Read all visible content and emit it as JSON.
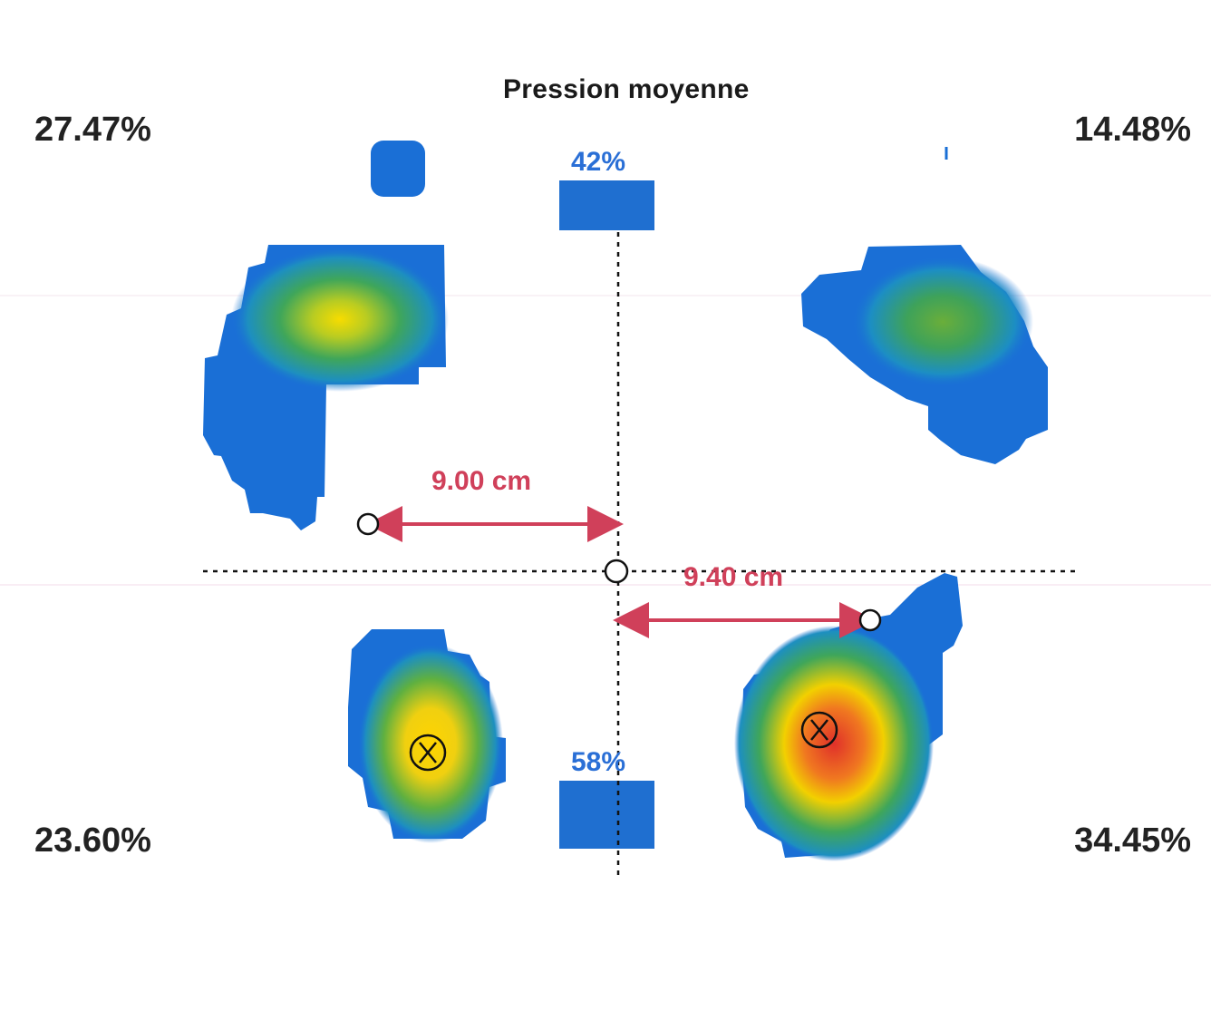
{
  "title": "Pression moyenne",
  "quadrants": {
    "top_left": "27.47%",
    "top_right": "14.48%",
    "bottom_left": "23.60%",
    "bottom_right": "34.45%"
  },
  "balance": {
    "front": "42%",
    "rear": "58%"
  },
  "distances": {
    "left": "9.00 cm",
    "right": "9.40 cm"
  },
  "colors": {
    "pressure_low": "#1a6fd6",
    "pressure_mid": "#3aa85a",
    "pressure_high": "#f5d800",
    "pressure_peak": "#e0302a",
    "balance_bar": "#1f6fd0",
    "distance_line": "#d0405a",
    "percent_text": "#222222",
    "balance_text": "#2a6fd6"
  }
}
